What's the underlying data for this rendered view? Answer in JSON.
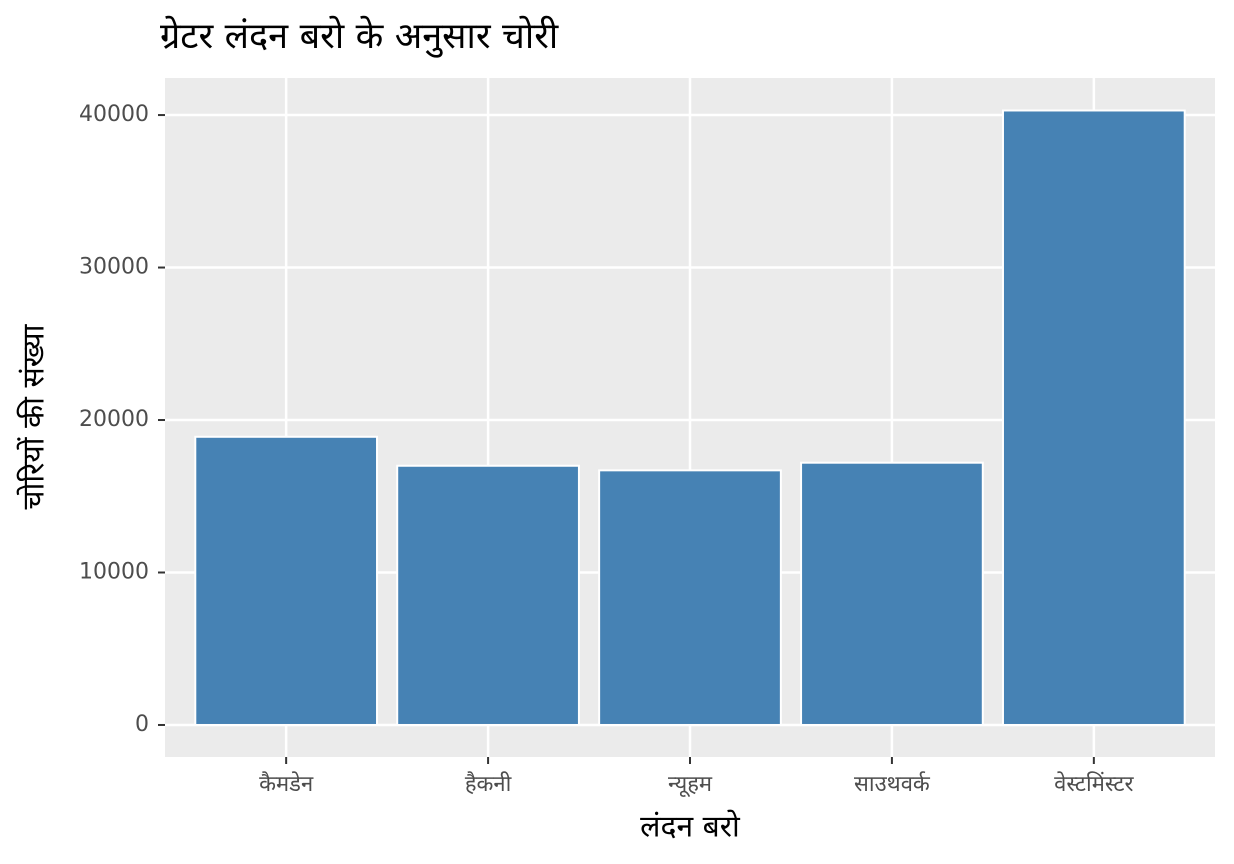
{
  "chart_data": {
    "type": "bar",
    "title": "ग्रेटर लंदन बरो के अनुसार चोरी",
    "x_label": "लंदन बरो",
    "y_label": "चोरियों की संख्या",
    "categories": [
      "कैमडेन",
      "हैकनी",
      "न्यूहम",
      "साउथवर्क",
      "वेस्टमिंस्टर"
    ],
    "values": [
      18900,
      17000,
      16700,
      17200,
      40300
    ],
    "color": "#4682b4",
    "ylim": [
      -2100,
      42430
    ],
    "yticks": [
      0,
      10000,
      20000,
      30000,
      40000
    ],
    "grid": true
  }
}
